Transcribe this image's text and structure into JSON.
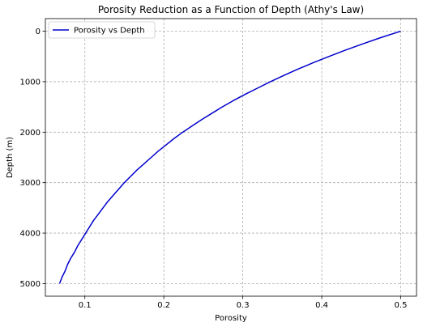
{
  "chart_data": {
    "type": "line",
    "title": "Porosity Reduction as a Function of Depth (Athy's Law)",
    "xlabel": "Porosity",
    "ylabel": "Depth (m)",
    "xlim": [
      0.05,
      0.52
    ],
    "ylim": [
      5250,
      -250
    ],
    "y_inverted": true,
    "grid": true,
    "legend_position": "top-left",
    "xticks": [
      0.1,
      0.2,
      0.3,
      0.4,
      0.5
    ],
    "xtick_labels": [
      "0.1",
      "0.2",
      "0.3",
      "0.4",
      "0.5"
    ],
    "yticks": [
      0,
      1000,
      2000,
      3000,
      4000,
      5000
    ],
    "ytick_labels": [
      "0",
      "1000",
      "2000",
      "3000",
      "4000",
      "5000"
    ],
    "series": [
      {
        "name": "Porosity vs Depth",
        "color": "#0000cc",
        "points": [
          [
            0.5,
            0
          ],
          [
            0.475,
            125
          ],
          [
            0.452,
            250
          ],
          [
            0.43,
            375
          ],
          [
            0.409,
            500
          ],
          [
            0.389,
            625
          ],
          [
            0.37,
            750
          ],
          [
            0.352,
            875
          ],
          [
            0.335,
            1000
          ],
          [
            0.319,
            1125
          ],
          [
            0.303,
            1250
          ],
          [
            0.288,
            1375
          ],
          [
            0.274,
            1500
          ],
          [
            0.261,
            1625
          ],
          [
            0.248,
            1750
          ],
          [
            0.236,
            1875
          ],
          [
            0.224,
            2000
          ],
          [
            0.213,
            2125
          ],
          [
            0.203,
            2250
          ],
          [
            0.193,
            2375
          ],
          [
            0.184,
            2500
          ],
          [
            0.175,
            2625
          ],
          [
            0.166,
            2750
          ],
          [
            0.158,
            2875
          ],
          [
            0.15,
            3000
          ],
          [
            0.143,
            3125
          ],
          [
            0.136,
            3250
          ],
          [
            0.129,
            3375
          ],
          [
            0.123,
            3500
          ],
          [
            0.117,
            3625
          ],
          [
            0.111,
            3750
          ],
          [
            0.106,
            3875
          ],
          [
            0.101,
            4000
          ],
          [
            0.096,
            4125
          ],
          [
            0.091,
            4250
          ],
          [
            0.087,
            4375
          ],
          [
            0.082,
            4500
          ],
          [
            0.078,
            4625
          ],
          [
            0.075,
            4750
          ],
          [
            0.071,
            4875
          ],
          [
            0.068,
            5000
          ]
        ]
      }
    ]
  }
}
